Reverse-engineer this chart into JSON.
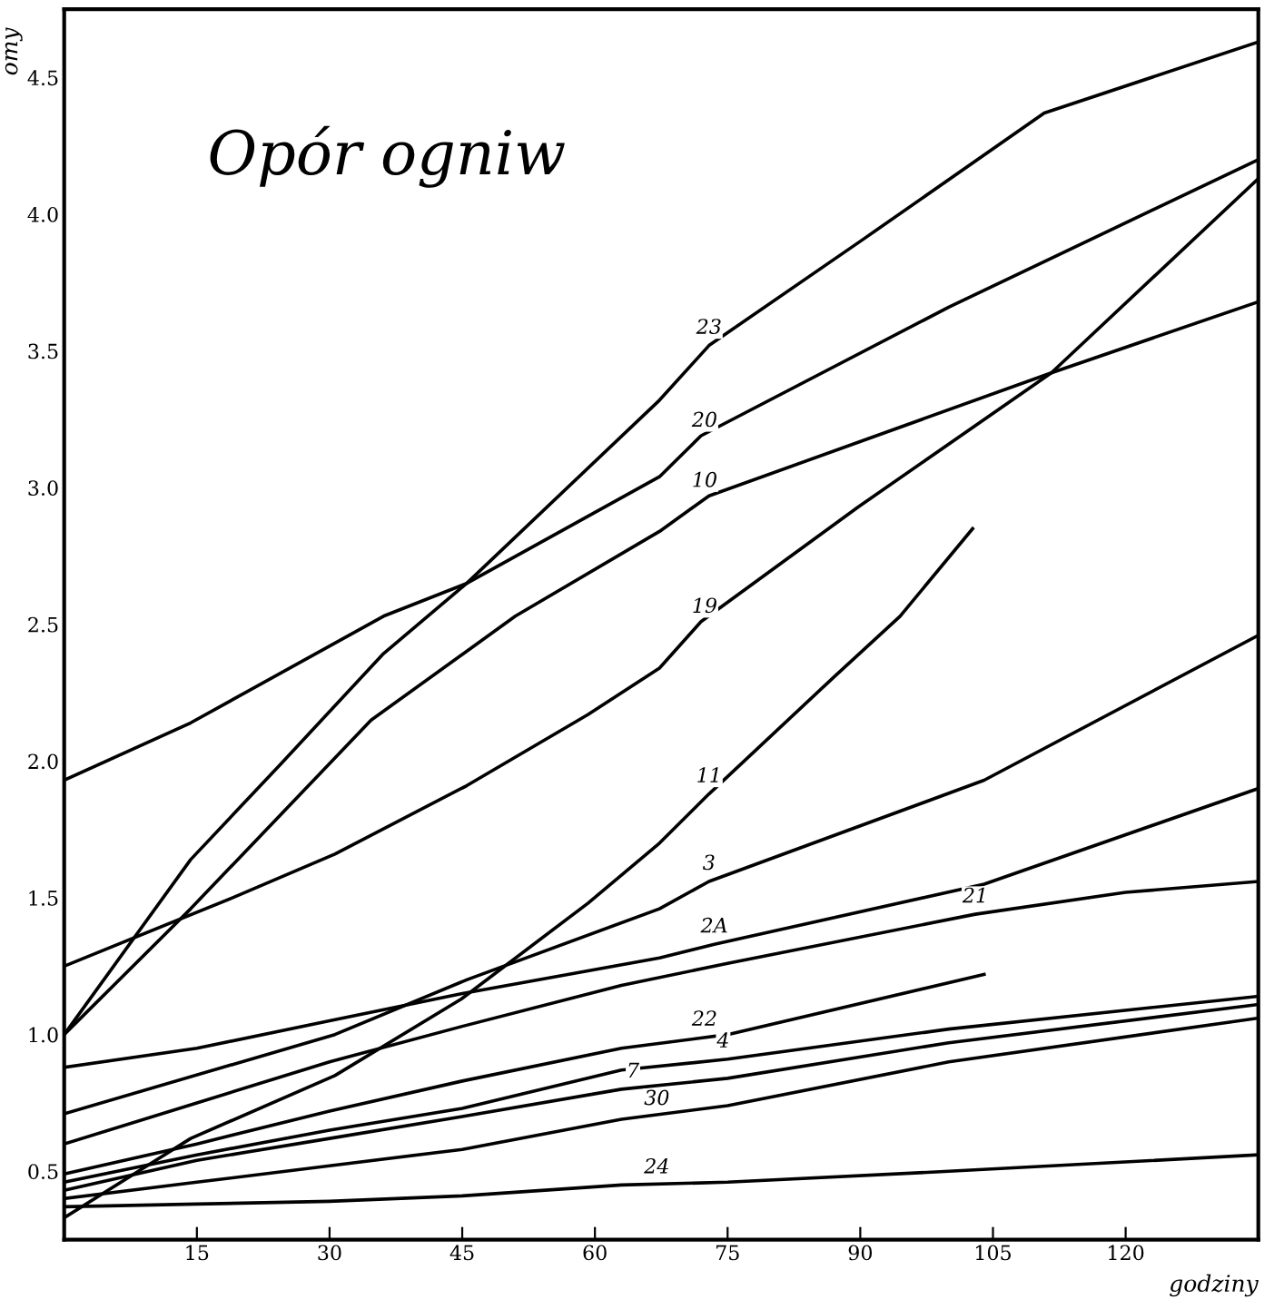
{
  "chart_data": {
    "type": "line",
    "title": "Opór ogniw",
    "xlabel": "godziny",
    "ylabel": "omy",
    "xlim": [
      0,
      135
    ],
    "ylim": [
      0.25,
      4.75
    ],
    "xticks": [
      15,
      30,
      45,
      60,
      75,
      90,
      105,
      120
    ],
    "yticks": [
      {
        "value": 0.5,
        "label": "0.5"
      },
      {
        "value": 1.0,
        "label": "1.0"
      },
      {
        "value": 1.5,
        "label": "1.5"
      },
      {
        "value": 2.0,
        "label": "2.0"
      },
      {
        "value": 2.5,
        "label": "2.5"
      },
      {
        "value": 3.0,
        "label": "3.0"
      },
      {
        "value": 3.5,
        "label": "3.5"
      },
      {
        "value": 4.0,
        "label": "4.0"
      },
      {
        "value": 4.5,
        "label": "4.5"
      }
    ],
    "grid": false,
    "legend": false,
    "marker": "none",
    "line_style": "solid",
    "series": [
      {
        "color": "#000000",
        "x": [
          0,
          14.3,
          24.5,
          36,
          45.5,
          67.3,
          72.9,
          90.4,
          110.8,
          135
        ],
        "values": [
          1.0,
          1.64,
          1.99,
          2.39,
          2.65,
          3.32,
          3.52,
          3.91,
          4.37,
          4.63
        ]
      },
      {
        "color": "#000000",
        "x": [
          0,
          14.3,
          36.1,
          45.5,
          67.3,
          72,
          100,
          135
        ],
        "values": [
          1.93,
          2.14,
          2.53,
          2.65,
          3.04,
          3.19,
          3.66,
          4.2
        ]
      },
      {
        "color": "#000000",
        "x": [
          0,
          14.3,
          34.7,
          51,
          67.3,
          72.9,
          111.6,
          135
        ],
        "values": [
          1.0,
          1.46,
          2.15,
          2.53,
          2.84,
          2.97,
          3.42,
          3.68
        ]
      },
      {
        "color": "#000000",
        "x": [
          0,
          19,
          30.6,
          45.5,
          59.2,
          67.3,
          72,
          89.8,
          111.6,
          135
        ],
        "values": [
          1.25,
          1.5,
          1.66,
          1.91,
          2.17,
          2.34,
          2.51,
          2.93,
          3.42,
          4.13
        ]
      },
      {
        "color": "#000000",
        "x": [
          0,
          14.3,
          30.6,
          44.9,
          59.2,
          67.3,
          72.9,
          87.1,
          94.5,
          102.7
        ],
        "values": [
          0.33,
          0.62,
          0.85,
          1.13,
          1.48,
          1.7,
          1.88,
          2.31,
          2.53,
          2.85
        ]
      },
      {
        "color": "#000000",
        "x": [
          0,
          30.6,
          45.5,
          67.3,
          72.9,
          104,
          135
        ],
        "values": [
          0.71,
          1.0,
          1.2,
          1.46,
          1.56,
          1.93,
          2.46
        ]
      },
      {
        "color": "#000000",
        "x": [
          0,
          15,
          30,
          45,
          67.3,
          73.5,
          104,
          135
        ],
        "values": [
          0.88,
          0.95,
          1.05,
          1.15,
          1.28,
          1.33,
          1.55,
          1.9
        ]
      },
      {
        "color": "#000000",
        "x": [
          0,
          15,
          30,
          45,
          63,
          75,
          103,
          120,
          135
        ],
        "values": [
          0.6,
          0.75,
          0.9,
          1.03,
          1.18,
          1.26,
          1.44,
          1.52,
          1.56
        ]
      },
      {
        "color": "#000000",
        "x": [
          0,
          15,
          30,
          45,
          63,
          75,
          104
        ],
        "values": [
          0.49,
          0.6,
          0.72,
          0.83,
          0.95,
          1.0,
          1.22
        ]
      },
      {
        "color": "#000000",
        "x": [
          0,
          15,
          30,
          45,
          63,
          75,
          100,
          135
        ],
        "values": [
          0.46,
          0.56,
          0.65,
          0.73,
          0.87,
          0.91,
          1.02,
          1.14
        ]
      },
      {
        "color": "#000000",
        "x": [
          0,
          15,
          30,
          45,
          63,
          75,
          100,
          135
        ],
        "values": [
          0.43,
          0.54,
          0.62,
          0.7,
          0.8,
          0.84,
          0.97,
          1.11
        ]
      },
      {
        "color": "#000000",
        "x": [
          0,
          15,
          30,
          45,
          63,
          75,
          100,
          135
        ],
        "values": [
          0.4,
          0.46,
          0.52,
          0.58,
          0.69,
          0.74,
          0.9,
          1.06
        ]
      },
      {
        "color": "#000000",
        "x": [
          0,
          15,
          30,
          45,
          63,
          75,
          100,
          135
        ],
        "values": [
          0.37,
          0.38,
          0.39,
          0.41,
          0.45,
          0.46,
          0.5,
          0.56
        ]
      }
    ],
    "annotations": [
      {
        "text": "23",
        "x": 72.9,
        "y": 3.52
      },
      {
        "text": "20",
        "x": 72.4,
        "y": 3.18
      },
      {
        "text": "10",
        "x": 72.4,
        "y": 2.96
      },
      {
        "text": "19",
        "x": 72.4,
        "y": 2.5
      },
      {
        "text": "11",
        "x": 72.9,
        "y": 1.88
      },
      {
        "text": "3",
        "x": 72.9,
        "y": 1.56
      },
      {
        "text": "2A",
        "x": 73.5,
        "y": 1.33
      },
      {
        "text": "21",
        "x": 103,
        "y": 1.44
      },
      {
        "text": "22",
        "x": 72.4,
        "y": 0.99
      },
      {
        "text": "4",
        "x": 74.5,
        "y": 0.91
      },
      {
        "text": "7",
        "x": 64.3,
        "y": 0.8
      },
      {
        "text": "30",
        "x": 67,
        "y": 0.7
      },
      {
        "text": "24",
        "x": 67,
        "y": 0.45
      }
    ]
  }
}
